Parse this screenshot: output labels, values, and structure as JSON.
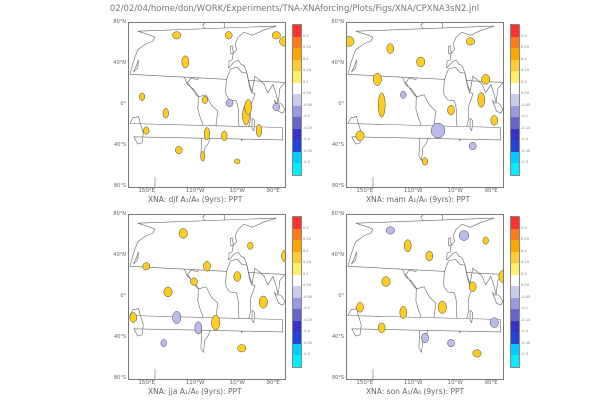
{
  "header": "02/02/04/home/don/WORK/Experiments/TNA-XNAforcing/Plots/Figs/XNA/CPXNA3sN2.jnl",
  "lat_labels": [
    "80°N",
    "40°N",
    "0°",
    "40°S",
    "80°S"
  ],
  "lon_labels": [
    "150°E",
    "110°W",
    "10°W",
    "90°E"
  ],
  "panels": [
    {
      "caption": "XNA: djf A₁/A₀ (9yrs): PPT"
    },
    {
      "caption": "XNA: mam A₁/A₀ (9yrs): PPT"
    },
    {
      "caption": "XNA: jja A₁/A₀ (9yrs): PPT"
    },
    {
      "caption": "XNA: son A₁/A₀ (9yrs): PPT"
    }
  ],
  "colorbar": {
    "colors": [
      "#ff3030",
      "#ff7a1a",
      "#ffa500",
      "#ffcc33",
      "#ffee66",
      "#ffffff",
      "#ccccee",
      "#9999dd",
      "#6666cc",
      "#3333cc",
      "#2244dd",
      "#00ccff",
      "#00eeff"
    ],
    "ticks": [
      "0.3",
      "0.25",
      "0.2",
      "0.15",
      "0.1",
      "0.05",
      "-0.05",
      "-0.1",
      "-0.15",
      "-0.2",
      "-0.25",
      "-0.3"
    ]
  }
}
